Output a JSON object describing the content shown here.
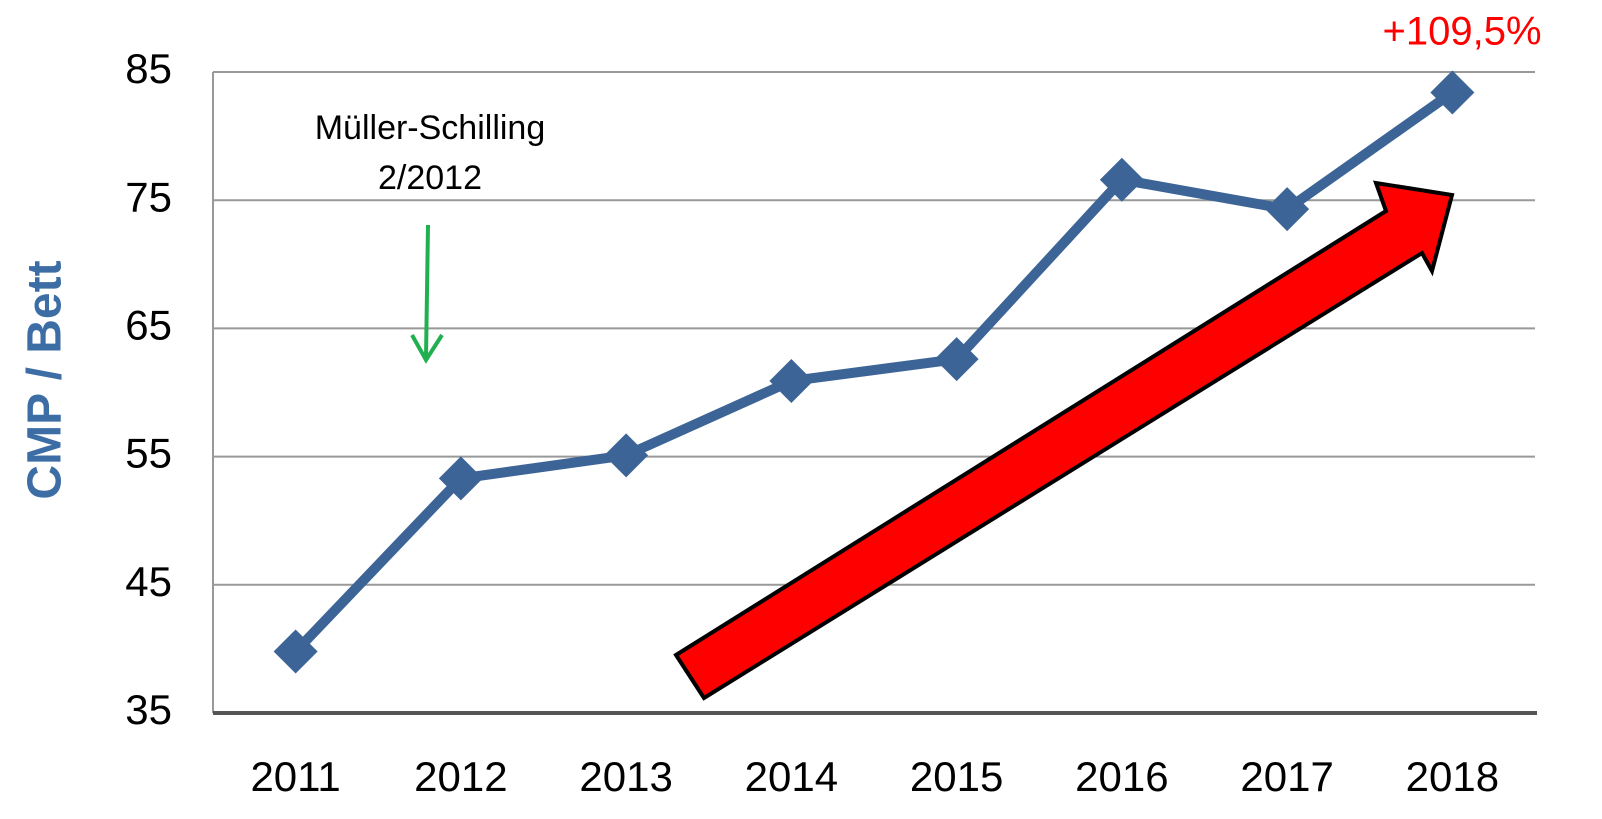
{
  "chart_data": {
    "type": "line",
    "y_label": "CMP / Bett",
    "annotations": [
      "+109,5%",
      "Müller-Schilling",
      "2/2012"
    ],
    "categories": [
      "2011",
      "2012",
      "2013",
      "2014",
      "2015",
      "2016",
      "2017",
      "2018"
    ],
    "series": [
      {
        "name": "CMP / Bett",
        "color": "#3c6496",
        "values": [
          39.8,
          53.3,
          55.1,
          60.9,
          62.6,
          76.6,
          74.3,
          83.4
        ]
      }
    ],
    "ylim": [
      35,
      85
    ],
    "yticks": [
      35,
      45,
      55,
      65,
      75,
      85
    ],
    "grid": true
  }
}
